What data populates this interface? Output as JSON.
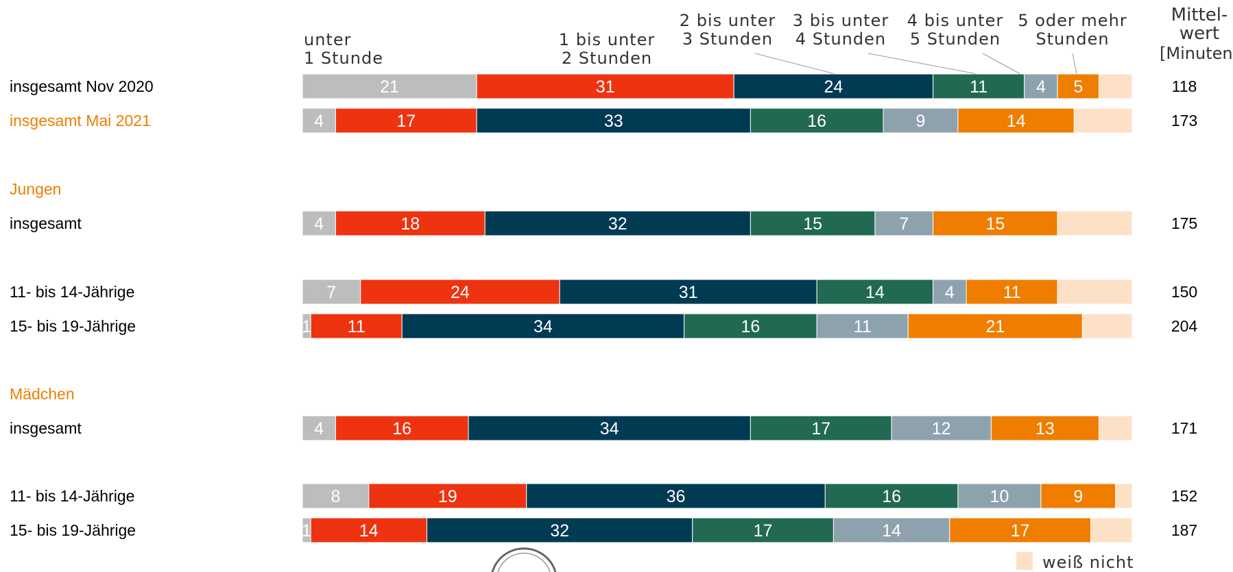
{
  "chart_data": {
    "type": "bar",
    "orientation": "horizontal",
    "stacked": true,
    "xlim": [
      0,
      100
    ],
    "categories": [
      "unter 1 Stunde",
      "1 bis unter 2 Stunden",
      "2 bis unter 3 Stunden",
      "3 bis unter 4 Stunden",
      "4 bis unter 5 Stunden",
      "5 oder mehr Stunden",
      "weiß nicht"
    ],
    "category_headers": [
      [
        "unter",
        "1 Stunde"
      ],
      [
        "1 bis unter",
        "2 Stunden"
      ],
      [
        "2 bis unter",
        "3 Stunden"
      ],
      [
        "3 bis unter",
        "4 Stunden"
      ],
      [
        "4 bis unter",
        "5 Stunden"
      ],
      [
        "5 oder mehr",
        "Stunden"
      ]
    ],
    "colors": [
      "#bdbdbd",
      "#ee3311",
      "#003b53",
      "#216953",
      "#8ea2ae",
      "#ef7d00",
      "#fde1c6"
    ],
    "label_colors": {
      "default": "#000000",
      "highlight": "#ef7d00"
    },
    "mean_header": [
      "Mittel-",
      "wert",
      "[Minuten]"
    ],
    "legend": {
      "label": "weiß nicht",
      "color": "#fde1c6",
      "placement": "bottom-right"
    },
    "groups": [
      {
        "label": "",
        "rows": [
          {
            "label": "insgesamt Nov 2020",
            "highlight": false,
            "values": [
              21,
              31,
              24,
              11,
              4,
              5,
              4
            ],
            "mean": "118"
          },
          {
            "label": "insgesamt Mai 2021",
            "highlight": true,
            "values": [
              4,
              17,
              33,
              16,
              9,
              14,
              7
            ],
            "mean": "173"
          }
        ]
      },
      {
        "label": "Jungen",
        "rows": [
          {
            "label": "insgesamt",
            "highlight": false,
            "values": [
              4,
              18,
              32,
              15,
              7,
              15,
              9
            ],
            "mean": "175"
          },
          {
            "label": "11- bis 14-Jährige",
            "highlight": false,
            "values": [
              7,
              24,
              31,
              14,
              4,
              11,
              9
            ],
            "mean": "150"
          },
          {
            "label": "15- bis 19-Jährige",
            "highlight": false,
            "values": [
              1,
              11,
              34,
              16,
              11,
              21,
              6
            ],
            "mean": "204"
          }
        ]
      },
      {
        "label": "Mädchen",
        "rows": [
          {
            "label": "insgesamt",
            "highlight": false,
            "values": [
              4,
              16,
              34,
              17,
              12,
              13,
              4
            ],
            "mean": "171"
          },
          {
            "label": "11- bis 14-Jährige",
            "highlight": false,
            "values": [
              8,
              19,
              36,
              16,
              10,
              9,
              2
            ],
            "mean": "152"
          },
          {
            "label": "15- bis 19-Jährige",
            "highlight": false,
            "values": [
              1,
              14,
              32,
              17,
              14,
              17,
              5
            ],
            "mean": "187"
          }
        ]
      }
    ]
  }
}
